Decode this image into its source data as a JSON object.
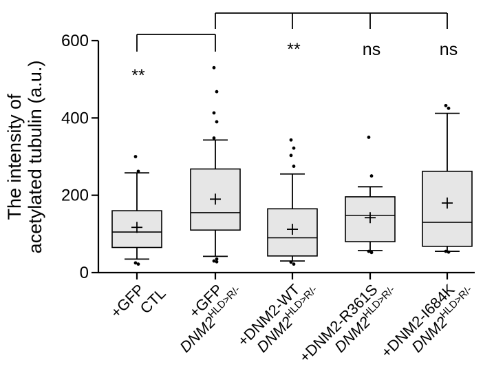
{
  "chart_data": {
    "type": "box",
    "ylabel_lines": [
      "The intensity of",
      "acetylated tubulin (a.u.)"
    ],
    "yticks": [
      0,
      200,
      400,
      600
    ],
    "ylim": [
      0,
      600
    ],
    "box_fill": "#e6e6e6",
    "categories": [
      {
        "lines": [
          {
            "text": "CTL"
          },
          {
            "text": "+GFP"
          }
        ]
      },
      {
        "lines": [
          {
            "gene": "DNM2",
            "sup": "HLD>R/-"
          },
          {
            "text": "+GFP"
          }
        ]
      },
      {
        "lines": [
          {
            "gene": "DNM2",
            "sup": "HLD>R/-"
          },
          {
            "text": "+DNM2-WT"
          }
        ]
      },
      {
        "lines": [
          {
            "gene": "DNM2",
            "sup": "HLD>R/-"
          },
          {
            "text": "+DNM2-R361S"
          }
        ]
      },
      {
        "lines": [
          {
            "gene": "DNM2",
            "sup": "HLD>R/-"
          },
          {
            "text": "+DNM2-I684K"
          }
        ]
      }
    ],
    "boxes": [
      {
        "whisker_low": 35,
        "q1": 65,
        "median": 105,
        "q3": 160,
        "whisker_high": 258,
        "mean": 117,
        "outliers": [
          300,
          262,
          25,
          22
        ]
      },
      {
        "whisker_low": 42,
        "q1": 110,
        "median": 155,
        "q3": 268,
        "whisker_high": 343,
        "mean": 190,
        "outliers": [
          530,
          468,
          413,
          390,
          348,
          35,
          30,
          28
        ]
      },
      {
        "whisker_low": 30,
        "q1": 43,
        "median": 90,
        "q3": 165,
        "whisker_high": 255,
        "mean": 112,
        "outliers": [
          343,
          322,
          303,
          275,
          27,
          22
        ]
      },
      {
        "whisker_low": 57,
        "q1": 80,
        "median": 148,
        "q3": 196,
        "whisker_high": 222,
        "mean": 142,
        "outliers": [
          350,
          250,
          55,
          52
        ]
      },
      {
        "whisker_low": 55,
        "q1": 68,
        "median": 130,
        "q3": 262,
        "whisker_high": 412,
        "mean": 180,
        "outliers": [
          432,
          425,
          55,
          53
        ]
      }
    ],
    "significance": [
      {
        "label": "**",
        "category_index": 0,
        "bracket": {
          "from": 0,
          "to": 1
        }
      },
      {
        "label": "**",
        "category_index": 2
      },
      {
        "label": "ns",
        "category_index": 3
      },
      {
        "label": "ns",
        "category_index": 4
      }
    ],
    "top_bracket": {
      "from": 1,
      "drops": [
        2,
        3,
        4
      ]
    }
  }
}
